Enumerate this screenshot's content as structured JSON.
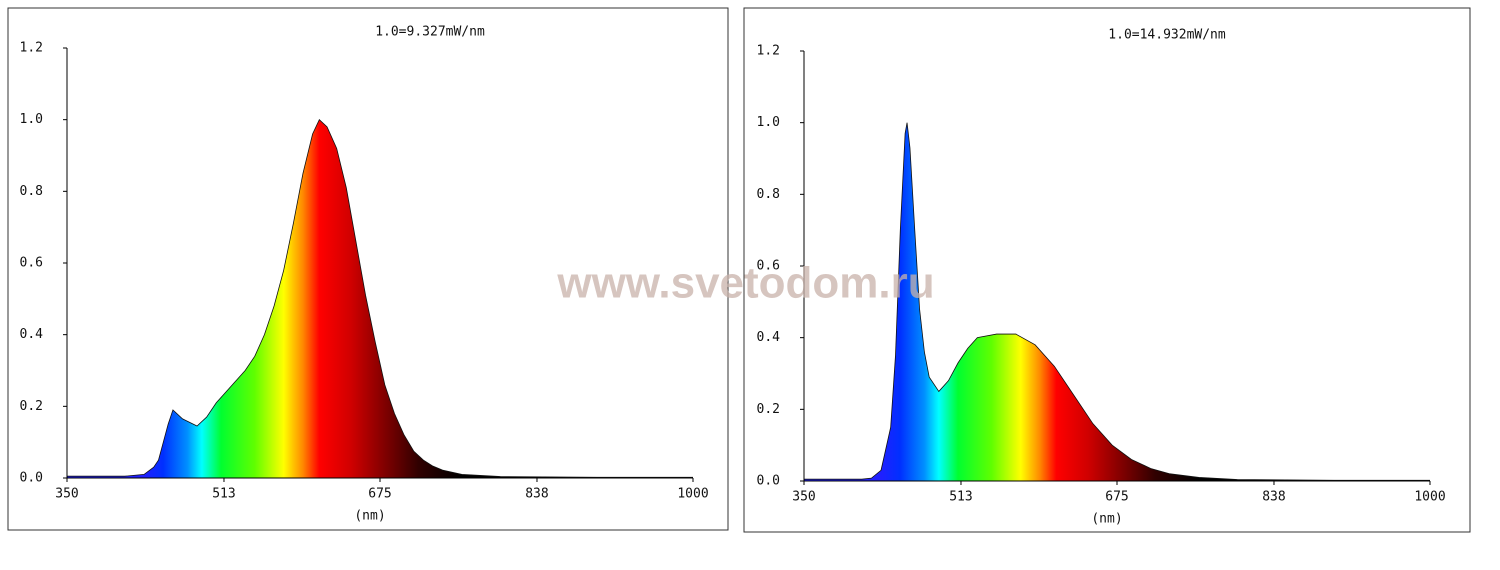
{
  "watermark": "www.svetodom.ru",
  "chart_data": [
    {
      "type": "area",
      "annotation": "1.0=9.327mW/nm",
      "xlabel": "(nm)",
      "x": [
        350,
        380,
        410,
        430,
        440,
        445,
        450,
        455,
        460,
        470,
        485,
        495,
        505,
        515,
        525,
        535,
        545,
        555,
        565,
        575,
        585,
        595,
        605,
        612,
        620,
        630,
        640,
        650,
        660,
        670,
        680,
        690,
        700,
        710,
        720,
        730,
        740,
        760,
        800,
        900,
        1000
      ],
      "values": [
        0.005,
        0.005,
        0.005,
        0.01,
        0.03,
        0.05,
        0.1,
        0.15,
        0.19,
        0.165,
        0.145,
        0.17,
        0.21,
        0.24,
        0.27,
        0.3,
        0.34,
        0.4,
        0.48,
        0.58,
        0.71,
        0.85,
        0.96,
        1.0,
        0.98,
        0.92,
        0.81,
        0.66,
        0.51,
        0.38,
        0.26,
        0.18,
        0.12,
        0.075,
        0.05,
        0.033,
        0.022,
        0.01,
        0.004,
        0.002,
        0.002
      ],
      "xlim": [
        350,
        1000
      ],
      "ylim": [
        0,
        1.2
      ],
      "xticks": [
        350,
        513,
        675,
        838,
        1000
      ],
      "yticks": [
        {
          "value": 0,
          "label": "0.0"
        },
        0.2,
        0.4,
        0.6,
        0.8,
        {
          "value": 1,
          "label": "1.0"
        },
        1.2
      ]
    },
    {
      "type": "area",
      "annotation": "1.0=14.932mW/nm",
      "xlabel": "(nm)",
      "x": [
        350,
        380,
        410,
        420,
        430,
        440,
        445,
        450,
        455,
        457,
        460,
        465,
        470,
        475,
        480,
        490,
        500,
        510,
        520,
        530,
        550,
        570,
        590,
        610,
        630,
        650,
        670,
        690,
        710,
        730,
        760,
        800,
        900,
        1000
      ],
      "values": [
        0.005,
        0.005,
        0.005,
        0.008,
        0.03,
        0.15,
        0.35,
        0.7,
        0.97,
        1.0,
        0.93,
        0.7,
        0.48,
        0.36,
        0.29,
        0.25,
        0.28,
        0.33,
        0.37,
        0.4,
        0.41,
        0.41,
        0.38,
        0.32,
        0.24,
        0.16,
        0.1,
        0.06,
        0.035,
        0.02,
        0.01,
        0.004,
        0.002,
        0.002
      ],
      "xlim": [
        350,
        1000
      ],
      "ylim": [
        0,
        1.2
      ],
      "xticks": [
        350,
        513,
        675,
        838,
        1000
      ],
      "yticks": [
        {
          "value": 0,
          "label": "0.0"
        },
        0.2,
        0.4,
        0.6,
        0.8,
        {
          "value": 1,
          "label": "1.0"
        },
        1.2
      ]
    }
  ]
}
